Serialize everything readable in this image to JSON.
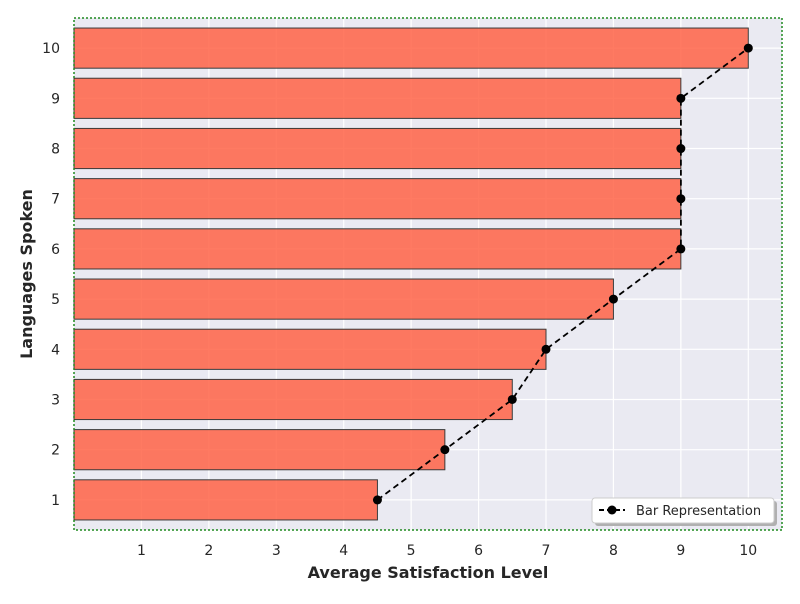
{
  "chart_data": {
    "type": "bar",
    "orientation": "horizontal",
    "title": "",
    "xlabel": "Average Satisfaction Level",
    "ylabel": "Languages Spoken",
    "categories": [
      "1",
      "2",
      "3",
      "4",
      "5",
      "6",
      "7",
      "8",
      "9",
      "10"
    ],
    "values": [
      4.5,
      5.5,
      6.5,
      7,
      8,
      9,
      9,
      9,
      9,
      10
    ],
    "x_ticks": [
      "1",
      "2",
      "3",
      "4",
      "5",
      "6",
      "7",
      "8",
      "9",
      "10"
    ],
    "xlim": [
      0,
      10.5
    ],
    "ylim": [
      0.4,
      10.6
    ],
    "grid": true,
    "legend": {
      "placement": "lower-right",
      "entries": [
        {
          "label": "Bar Representation",
          "style": "dashed line with circle markers"
        }
      ]
    },
    "colors": {
      "bar_fill": "#ff6347",
      "bar_edge": "#3a3a3a",
      "line": "#000000",
      "plot_background": "#eaeaf2",
      "grid": "#ffffff",
      "frame": "#1f8a1f"
    }
  }
}
